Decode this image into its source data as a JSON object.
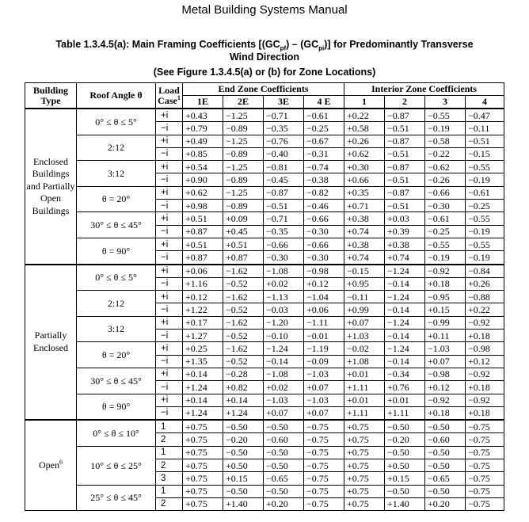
{
  "header": "Metal Building Systems Manual",
  "caption": {
    "line1": "Table 1.3.4.5(a): Main Framing Coefficients [(GCpf) – (GCpi)] for Predominantly Transverse",
    "line2": "Wind Direction",
    "line3": "(See Figure 1.3.4.5(a) or (b) for Zone Locations)"
  },
  "columns": {
    "building_type": "Building Type",
    "roof_angle": "Roof Angle θ",
    "load_case": "Load Case",
    "load_case_note": "1",
    "end_zone": "End Zone Coefficients",
    "interior_zone": "Interior Zone Coefficients",
    "end_sub": [
      "1E",
      "2E",
      "3E",
      "4 E"
    ],
    "int_sub": [
      "1",
      "2",
      "3",
      "4"
    ]
  },
  "groups": [
    {
      "type": "Enclosed Buildings and Partially Open Buildings",
      "angles": [
        {
          "angle": "0° ≤ θ ≤ 5°",
          "rows": [
            {
              "case": "+i",
              "values": [
                "+0.43",
                "−1.25",
                "−0.71",
                "−0.61",
                "+0.22",
                "−0.87",
                "−0.55",
                "−0.47"
              ]
            },
            {
              "case": "−i",
              "values": [
                "+0.79",
                "−0.89",
                "−0.35",
                "−0.25",
                "+0.58",
                "−0.51",
                "−0.19",
                "−0.11"
              ]
            }
          ]
        },
        {
          "angle": "2:12",
          "rows": [
            {
              "case": "+i",
              "values": [
                "+0.49",
                "−1.25",
                "−0.76",
                "−0.67",
                "+0.26",
                "−0.87",
                "−0.58",
                "−0.51"
              ]
            },
            {
              "case": "−i",
              "values": [
                "+0.85",
                "−0.89",
                "−0.40",
                "−0.31",
                "+0.62",
                "−0.51",
                "−0.22",
                "−0.15"
              ]
            }
          ]
        },
        {
          "angle": "3:12",
          "rows": [
            {
              "case": "+i",
              "values": [
                "+0.54",
                "−1.25",
                "−0.81",
                "−0.74",
                "+0.30",
                "−0.87",
                "−0.62",
                "−0.55"
              ]
            },
            {
              "case": "−i",
              "values": [
                "+0.90",
                "−0.89",
                "−0.45",
                "−0.38",
                "+0.66",
                "−0.51",
                "−0.26",
                "−0.19"
              ]
            }
          ]
        },
        {
          "angle": "θ = 20°",
          "rows": [
            {
              "case": "+i",
              "values": [
                "+0.62",
                "−1.25",
                "−0.87",
                "−0.82",
                "+0.35",
                "−0.87",
                "−0.66",
                "−0.61"
              ]
            },
            {
              "case": "−i",
              "values": [
                "+0.98",
                "−0.89",
                "−0.51",
                "−0.46",
                "+0.71",
                "−0.51",
                "−0.30",
                "−0.25"
              ]
            }
          ]
        },
        {
          "angle": "30° ≤ θ ≤ 45°",
          "rows": [
            {
              "case": "+i",
              "values": [
                "+0.51",
                "+0.09",
                "−0.71",
                "−0.66",
                "+0.38",
                "+0.03",
                "−0.61",
                "−0.55"
              ]
            },
            {
              "case": "−i",
              "values": [
                "+0.87",
                "+0.45",
                "−0.35",
                "−0.30",
                "+0.74",
                "+0.39",
                "−0.25",
                "−0.19"
              ]
            }
          ]
        },
        {
          "angle": "θ = 90°",
          "rows": [
            {
              "case": "+i",
              "values": [
                "+0.51",
                "+0.51",
                "−0.66",
                "−0.66",
                "+0.38",
                "+0.38",
                "−0.55",
                "−0.55"
              ]
            },
            {
              "case": "−i",
              "values": [
                "+0.87",
                "+0.87",
                "−0.30",
                "−0.30",
                "+0.74",
                "+0.74",
                "−0.19",
                "−0.19"
              ]
            }
          ]
        }
      ]
    },
    {
      "type": "Partially Enclosed",
      "angles": [
        {
          "angle": "0° ≤ θ ≤ 5°",
          "rows": [
            {
              "case": "+i",
              "values": [
                "+0.06",
                "−1.62",
                "−1.08",
                "−0.98",
                "−0.15",
                "−1.24",
                "−0.92",
                "−0.84"
              ]
            },
            {
              "case": "−i",
              "values": [
                "+1.16",
                "−0.52",
                "+0.02",
                "+0.12",
                "+0.95",
                "−0.14",
                "+0.18",
                "+0.26"
              ]
            }
          ]
        },
        {
          "angle": "2:12",
          "rows": [
            {
              "case": "+i",
              "values": [
                "+0.12",
                "−1.62",
                "−1.13",
                "−1.04",
                "−0.11",
                "−1.24",
                "−0.95",
                "−0.88"
              ]
            },
            {
              "case": "−i",
              "values": [
                "+1.22",
                "−0.52",
                "−0.03",
                "+0.06",
                "+0.99",
                "−0.14",
                "+0.15",
                "+0.22"
              ]
            }
          ]
        },
        {
          "angle": "3:12",
          "rows": [
            {
              "case": "+i",
              "values": [
                "+0.17",
                "−1.62",
                "−1.20",
                "−1.11",
                "+0.07",
                "−1.24",
                "−0.99",
                "−0.92"
              ]
            },
            {
              "case": "−i",
              "values": [
                "+1.27",
                "−0.52",
                "−0.10",
                "−0.01",
                "+1.03",
                "−0.14",
                "+0.11",
                "+0.18"
              ]
            }
          ]
        },
        {
          "angle": "θ = 20°",
          "rows": [
            {
              "case": "+i",
              "values": [
                "+0.25",
                "−1.62",
                "−1.24",
                "−1.19",
                "−0.02",
                "−1.24",
                "−1.03",
                "−0.98"
              ]
            },
            {
              "case": "−i",
              "values": [
                "+1.35",
                "−0.52",
                "−0.14",
                "−0.09",
                "+1.08",
                "−0.14",
                "+0.07",
                "+0.12"
              ]
            }
          ]
        },
        {
          "angle": "30° ≤ θ ≤ 45°",
          "rows": [
            {
              "case": "+i",
              "values": [
                "+0.14",
                "−0.28",
                "−1.08",
                "−1.03",
                "+0.01",
                "−0.34",
                "−0.98",
                "−0.92"
              ]
            },
            {
              "case": "−i",
              "values": [
                "+1.24",
                "+0.82",
                "+0.02",
                "+0.07",
                "+1.11",
                "+0.76",
                "+0.12",
                "+0.18"
              ]
            }
          ]
        },
        {
          "angle": "θ = 90°",
          "rows": [
            {
              "case": "+i",
              "values": [
                "+0.14",
                "+0.14",
                "−1.03",
                "−1.03",
                "+0.01",
                "+0.01",
                "−0.92",
                "−0.92"
              ]
            },
            {
              "case": "−i",
              "values": [
                "+1.24",
                "+1.24",
                "+0.07",
                "+0.07",
                "+1.11",
                "+1.11",
                "+0.18",
                "+0.18"
              ]
            }
          ]
        }
      ]
    },
    {
      "type": "Open",
      "type_note": "6",
      "angles": [
        {
          "angle": "0° ≤ θ ≤ 10°",
          "rows": [
            {
              "case": "1",
              "values": [
                "+0.75",
                "−0.50",
                "−0.50",
                "−0.75",
                "+0.75",
                "−0.50",
                "−0.50",
                "−0.75"
              ]
            },
            {
              "case": "2",
              "values": [
                "+0.75",
                "−0.20",
                "−0.60",
                "−0.75",
                "+0.75",
                "−0.20",
                "−0.60",
                "−0.75"
              ]
            }
          ]
        },
        {
          "angle": "10° ≤ θ ≤ 25°",
          "rows": [
            {
              "case": "1",
              "values": [
                "+0.75",
                "−0.50",
                "−0.50",
                "−0.75",
                "+0.75",
                "−0.50",
                "−0.50",
                "−0.75"
              ]
            },
            {
              "case": "2",
              "values": [
                "+0.75",
                "+0.50",
                "−0.50",
                "−0.75",
                "+0.75",
                "+0.50",
                "−0.50",
                "−0.75"
              ]
            },
            {
              "case": "3",
              "values": [
                "+0.75",
                "+0.15",
                "−0.65",
                "−0.75",
                "+0.75",
                "+0.15",
                "−0.65",
                "−0.75"
              ]
            }
          ]
        },
        {
          "angle": "25° ≤ θ ≤ 45°",
          "rows": [
            {
              "case": "1",
              "values": [
                "+0.75",
                "−0.50",
                "−0.50",
                "−0.75",
                "+0.75",
                "−0.50",
                "−0.50",
                "−0.75"
              ]
            },
            {
              "case": "2",
              "values": [
                "+0.75",
                "+1.40",
                "+0.20",
                "−0.75",
                "+0.75",
                "+1.40",
                "+0.20",
                "−0.75"
              ]
            }
          ]
        }
      ]
    }
  ]
}
